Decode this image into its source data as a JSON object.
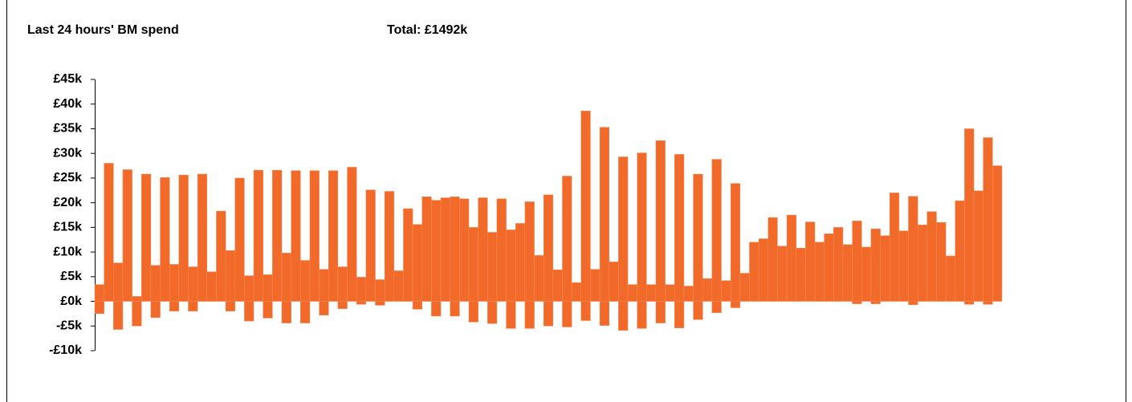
{
  "chart_data": {
    "type": "bar",
    "title": "Last 24 hours' BM spend",
    "subtitle": "Total: £1492k",
    "ylim": [
      -10,
      45
    ],
    "yticks": [
      {
        "value": -10,
        "label": "-£10k"
      },
      {
        "value": -5,
        "label": "-£5k"
      },
      {
        "value": 0,
        "label": "£0k"
      },
      {
        "value": 5,
        "label": "£5k"
      },
      {
        "value": 10,
        "label": "£10k"
      },
      {
        "value": 15,
        "label": "£15k"
      },
      {
        "value": 20,
        "label": "£20k"
      },
      {
        "value": 25,
        "label": "£25k"
      },
      {
        "value": 30,
        "label": "£30k"
      },
      {
        "value": 35,
        "label": "£35k"
      },
      {
        "value": 40,
        "label": "£40k"
      },
      {
        "value": 45,
        "label": "£45k"
      }
    ],
    "series": [
      {
        "color": "#f26a2a",
        "values": [
          3.4,
          28,
          7.8,
          26.7,
          1,
          25.8,
          7.3,
          25.1,
          7.5,
          25.6,
          7,
          25.8,
          6,
          18.3,
          10.3,
          25,
          5.2,
          26.6,
          5.4,
          26.6,
          9.8,
          26.5,
          8.3,
          26.5,
          6.5,
          26.5,
          7,
          27.2,
          4.9,
          22.6,
          4.4,
          22.3,
          6.2,
          18.8,
          15.6,
          21.2,
          20.5,
          21,
          21.2,
          20.8,
          15,
          21,
          14,
          20.8,
          14.5,
          15.8,
          20.2,
          9.3,
          21.6,
          6.4,
          25.4,
          3.8,
          38.6,
          6.5,
          35.3,
          8,
          29.3,
          3.4,
          30.1,
          3.4,
          32.6,
          3.4,
          29.8,
          3.1,
          25.8,
          4.6,
          28.8,
          4.2,
          23.9,
          5.7,
          12,
          12.7,
          17,
          11.2,
          17.5,
          10.8,
          16.1,
          12,
          13.7,
          15,
          11.5,
          16.3,
          11,
          14.7,
          13.3,
          22,
          14.3,
          21.3,
          15.5,
          18.2,
          16,
          9.2,
          20.4,
          35,
          22.4,
          33.2,
          27.5
        ]
      },
      {
        "color": "#f26a2a",
        "values": [
          -2.5,
          0,
          -5.7,
          0,
          -5,
          0,
          -3.3,
          0,
          -2,
          0,
          -2,
          0,
          0,
          0,
          -2,
          0,
          -4,
          0,
          -3.4,
          0,
          -4.4,
          0,
          -4.4,
          0,
          -2.8,
          0,
          -1.5,
          0,
          -0.6,
          0,
          -0.8,
          0,
          0,
          0,
          -1.6,
          0,
          -3,
          0,
          -3,
          0,
          -4.2,
          0,
          -4.5,
          0,
          -5.5,
          0,
          -5.5,
          0,
          -5,
          0,
          -5.2,
          0,
          -3.9,
          0,
          -4.9,
          0,
          -5.9,
          0,
          -5.5,
          0,
          -4.4,
          0,
          -5.4,
          0,
          -3.7,
          0,
          -2.3,
          0,
          -1.3,
          0,
          0,
          0,
          0,
          0,
          0,
          0,
          0,
          0,
          0,
          0,
          0,
          -0.5,
          0,
          -0.5,
          0,
          0,
          0,
          -0.7,
          0,
          0,
          0,
          0,
          0,
          -0.6,
          0,
          -0.6,
          0
        ]
      }
    ]
  }
}
